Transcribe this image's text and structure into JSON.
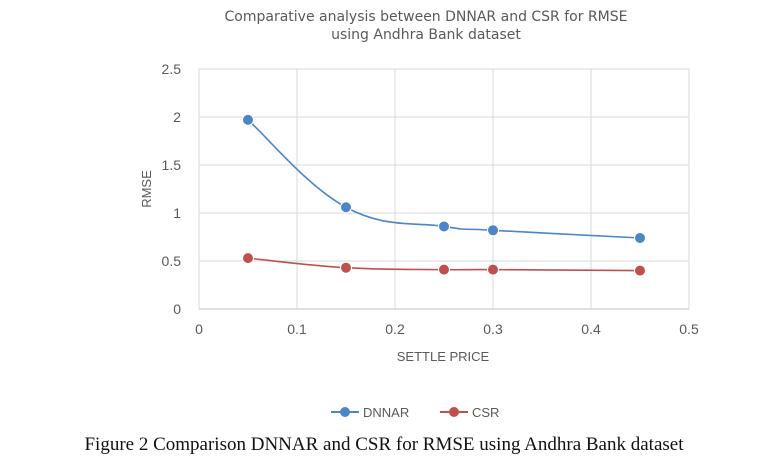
{
  "caption": "Figure 2 Comparison DNNAR and CSR for RMSE using Andhra Bank dataset",
  "chart_data": {
    "type": "line",
    "title_lines": [
      "Comparative  analysis between  DNNAR and  CSR for RMSE",
      "using Andhra  Bank dataset"
    ],
    "xlabel": "SETTLE PRICE",
    "ylabel": "RMSE",
    "x": [
      0.05,
      0.15,
      0.25,
      0.3,
      0.45
    ],
    "xlim": [
      0,
      0.5
    ],
    "ylim": [
      0,
      2.5
    ],
    "x_ticks": [
      "0",
      "0.1",
      "0.2",
      "0.3",
      "0.4",
      "0.5"
    ],
    "y_ticks": [
      "0",
      "0.5",
      "1",
      "1.5",
      "2",
      "2.5"
    ],
    "grid": true,
    "legend_position": "bottom",
    "series": [
      {
        "name": "DNNAR",
        "color": "#4a86c8",
        "values": [
          1.97,
          1.06,
          0.86,
          0.82,
          0.74
        ]
      },
      {
        "name": "CSR",
        "color": "#c0504d",
        "values": [
          0.53,
          0.43,
          0.41,
          0.41,
          0.4
        ]
      }
    ]
  }
}
